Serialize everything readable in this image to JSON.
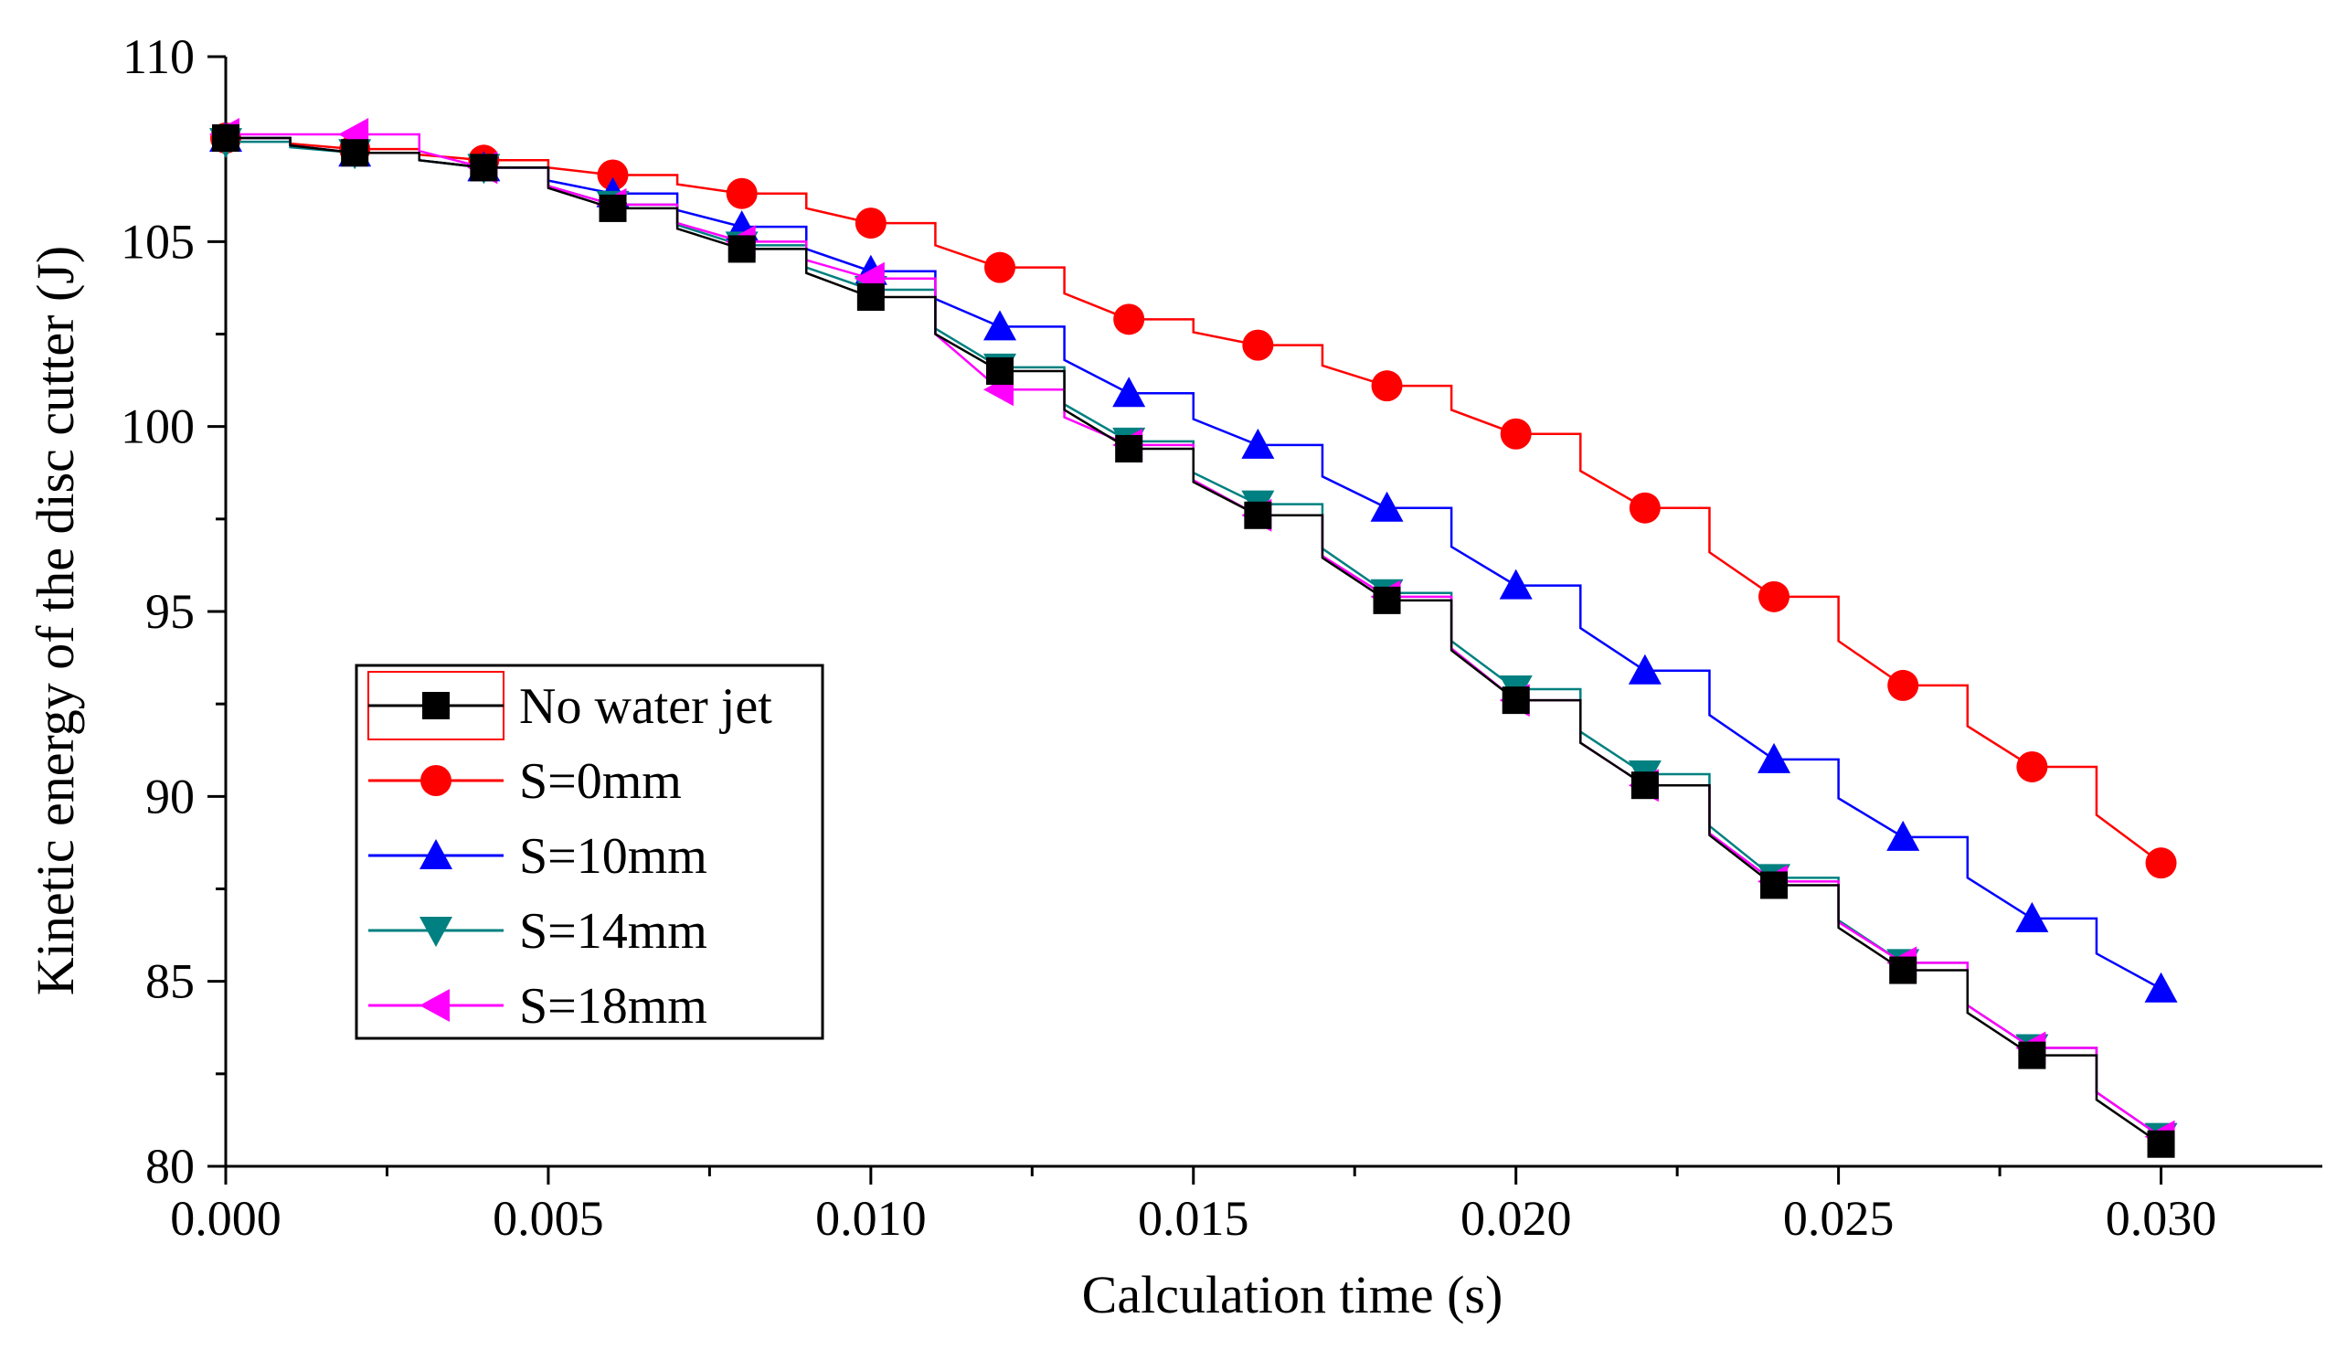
{
  "chart_data": {
    "type": "line",
    "title": "",
    "xlabel": "Calculation time (s)",
    "ylabel": "Kinetic energy of the disc cutter (J)",
    "xlim": [
      0,
      0.0325
    ],
    "ylim": [
      80,
      110
    ],
    "xticks": [
      "0.000",
      "0.005",
      "0.010",
      "0.015",
      "0.020",
      "0.025",
      "0.030"
    ],
    "xtick_values": [
      0,
      0.005,
      0.01,
      0.015,
      0.02,
      0.025,
      0.03
    ],
    "yticks": [
      "80",
      "85",
      "90",
      "95",
      "100",
      "105",
      "110"
    ],
    "ytick_values": [
      80,
      85,
      90,
      95,
      100,
      105,
      110
    ],
    "grid": false,
    "legend_position": "bottom-left",
    "x": [
      0,
      0.002,
      0.004,
      0.006,
      0.008,
      0.01,
      0.012,
      0.014,
      0.016,
      0.018,
      0.02,
      0.022,
      0.024,
      0.026,
      0.028,
      0.03
    ],
    "series": [
      {
        "name": "No water jet",
        "color": "#000000",
        "marker": "square",
        "values": [
          107.8,
          107.4,
          107.0,
          105.9,
          104.8,
          103.5,
          101.5,
          99.4,
          97.6,
          95.3,
          92.6,
          90.3,
          87.6,
          85.3,
          83.0,
          80.6
        ]
      },
      {
        "name": "S=0mm",
        "color": "#ff0000",
        "marker": "circle",
        "values": [
          107.8,
          107.5,
          107.2,
          106.8,
          106.3,
          105.5,
          104.3,
          102.9,
          102.2,
          101.1,
          99.8,
          97.8,
          95.4,
          93.0,
          90.8,
          88.2
        ]
      },
      {
        "name": "S=10mm",
        "color": "#0000ff",
        "marker": "triangle-up",
        "values": [
          107.8,
          107.4,
          107.0,
          106.3,
          105.4,
          104.2,
          102.7,
          100.9,
          99.5,
          97.8,
          95.7,
          93.4,
          91.0,
          88.9,
          86.7,
          84.8
        ]
      },
      {
        "name": "S=14mm",
        "color": "#008080",
        "marker": "triangle-down",
        "values": [
          107.7,
          107.4,
          107.0,
          106.0,
          104.9,
          103.7,
          101.6,
          99.6,
          97.9,
          95.5,
          92.9,
          90.6,
          87.8,
          85.5,
          83.2,
          80.8
        ]
      },
      {
        "name": "S=18mm",
        "color": "#ff00ff",
        "marker": "triangle-left",
        "values": [
          107.9,
          107.9,
          107.0,
          106.0,
          105.0,
          104.0,
          101.0,
          99.5,
          97.6,
          95.4,
          92.6,
          90.3,
          87.7,
          85.5,
          83.2,
          80.8
        ]
      }
    ]
  }
}
